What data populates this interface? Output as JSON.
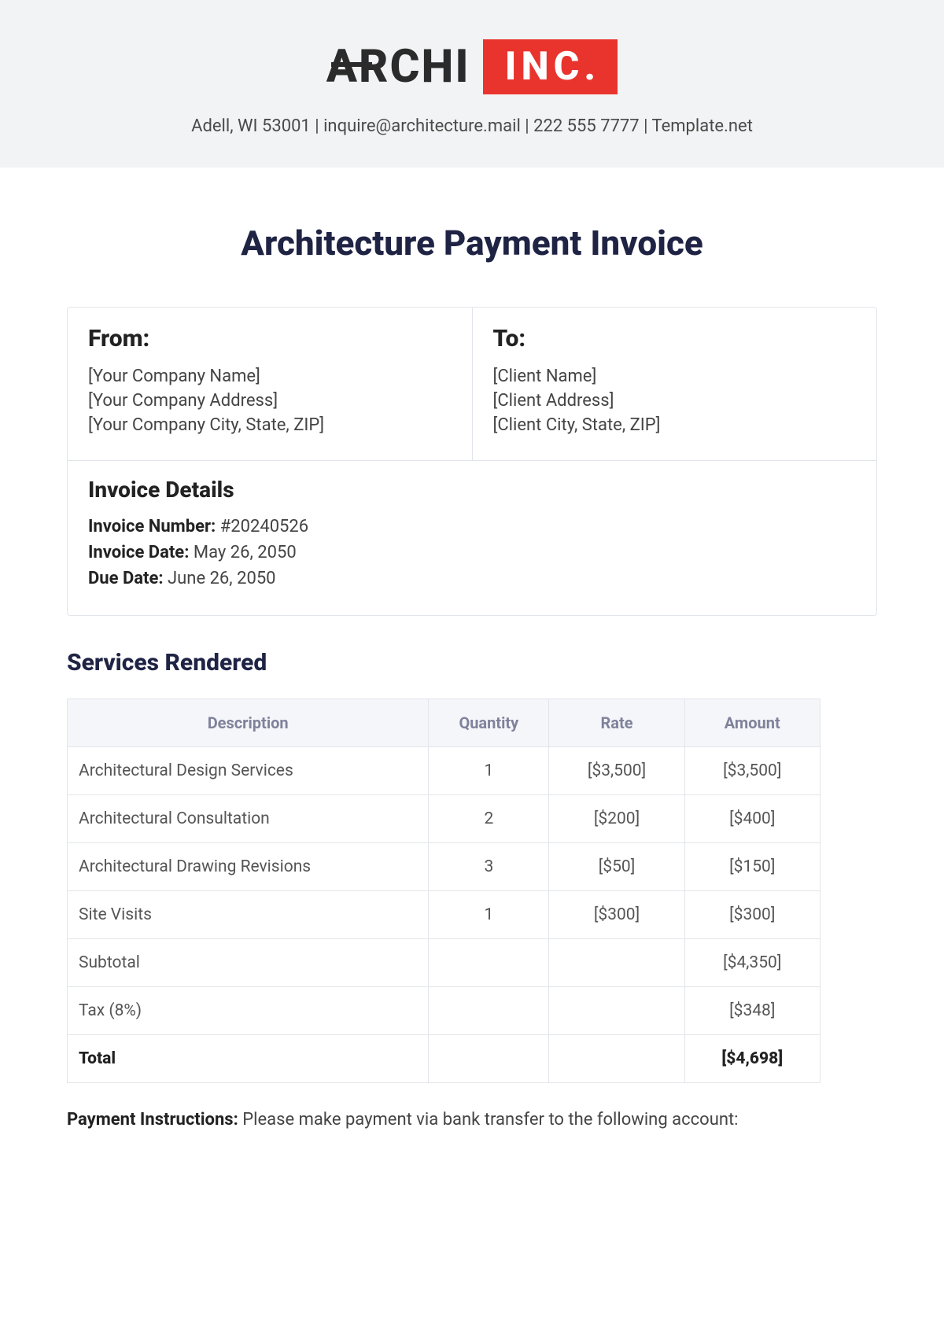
{
  "colors": {
    "header_bg": "#f2f3f4",
    "logo_dark": "#2b2b2b",
    "accent_red": "#e9342e",
    "title_navy": "#1f2344",
    "border": "#e2e5ea",
    "th_bg": "#f5f6fa",
    "th_text": "#7f829a",
    "body_text": "#444"
  },
  "header": {
    "logo_left": "ARCHI",
    "logo_right": "INC.",
    "contact_line": "Adell, WI 53001 | inquire@architecture.mail | 222 555 7777 | Template.net"
  },
  "title": "Architecture Payment Invoice",
  "from": {
    "heading": "From:",
    "lines": [
      "[Your Company Name]",
      "[Your Company Address]",
      "[Your Company City, State, ZIP]"
    ]
  },
  "to": {
    "heading": "To:",
    "lines": [
      "[Client Name]",
      "[Client Address]",
      "[Client City, State, ZIP]"
    ]
  },
  "details": {
    "heading": "Invoice Details",
    "rows": [
      {
        "label": "Invoice Number:",
        "value": "#20240526"
      },
      {
        "label": "Invoice Date:",
        "value": "May 26, 2050"
      },
      {
        "label": "Due Date:",
        "value": "June 26, 2050"
      }
    ]
  },
  "services": {
    "heading": "Services Rendered",
    "columns": [
      "Description",
      "Quantity",
      "Rate",
      "Amount"
    ],
    "col_widths": [
      "48%",
      "16%",
      "18%",
      "18%"
    ],
    "rows": [
      {
        "desc": "Architectural Design Services",
        "qty": "1",
        "rate": "[$3,500]",
        "amount": "[$3,500]"
      },
      {
        "desc": "Architectural Consultation",
        "qty": "2",
        "rate": "[$200]",
        "amount": "[$400]"
      },
      {
        "desc": "Architectural Drawing Revisions",
        "qty": "3",
        "rate": "[$50]",
        "amount": "[$150]"
      },
      {
        "desc": "Site Visits",
        "qty": "1",
        "rate": "[$300]",
        "amount": "[$300]"
      },
      {
        "desc": "Subtotal",
        "qty": "",
        "rate": "",
        "amount": "[$4,350]"
      },
      {
        "desc": "Tax (8%)",
        "qty": "",
        "rate": "",
        "amount": "[$348]"
      }
    ],
    "total": {
      "desc": "Total",
      "qty": "",
      "rate": "",
      "amount": "[$4,698]"
    }
  },
  "payment": {
    "label": "Payment Instructions:",
    "text": "Please make payment via bank transfer to the following account:"
  }
}
